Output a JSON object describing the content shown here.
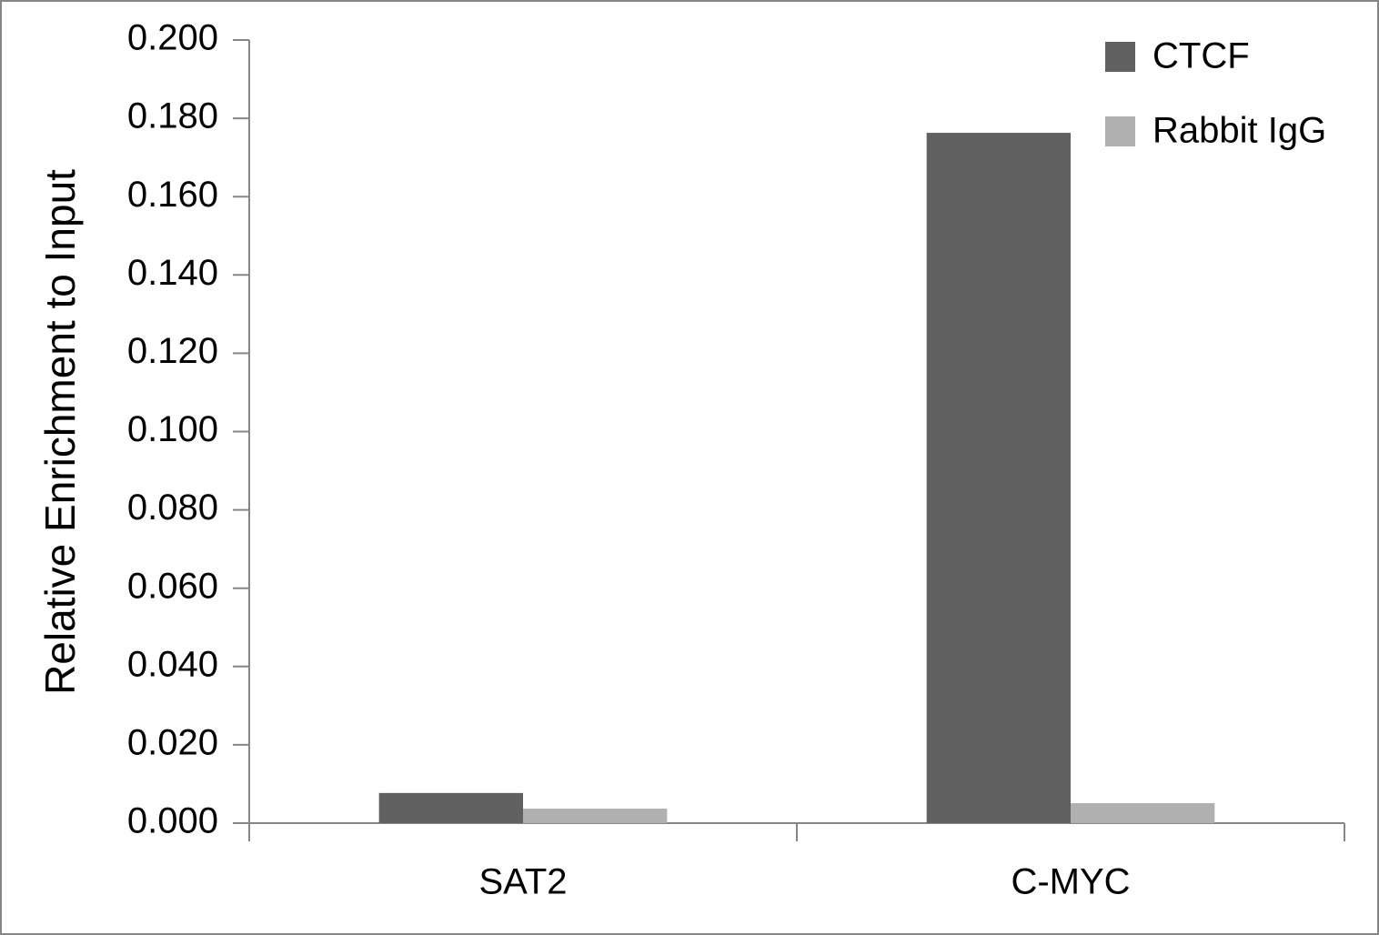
{
  "chart_data": {
    "type": "bar",
    "y_label": "Relative Enrichment to Input",
    "categories": [
      "SAT2",
      "C-MYC"
    ],
    "series": [
      {
        "name": "CTCF",
        "color": "#616161",
        "values": [
          0.0077,
          0.1763
        ]
      },
      {
        "name": "Rabbit IgG",
        "color": "#b0b0b0",
        "values": [
          0.0037,
          0.0051
        ]
      }
    ],
    "ylim": [
      0,
      0.2
    ],
    "yticks": [
      {
        "value": 0,
        "label": "0.000"
      },
      {
        "value": 0.02,
        "label": "0.020"
      },
      {
        "value": 0.04,
        "label": "0.040"
      },
      {
        "value": 0.06,
        "label": "0.060"
      },
      {
        "value": 0.08,
        "label": "0.080"
      },
      {
        "value": 0.1,
        "label": "0.100"
      },
      {
        "value": 0.12,
        "label": "0.120"
      },
      {
        "value": 0.14,
        "label": "0.140"
      },
      {
        "value": 0.16,
        "label": "0.160"
      },
      {
        "value": 0.18,
        "label": "0.180"
      },
      {
        "value": 0.2,
        "label": "0.200"
      }
    ],
    "grid": false,
    "legend": "top-right"
  }
}
